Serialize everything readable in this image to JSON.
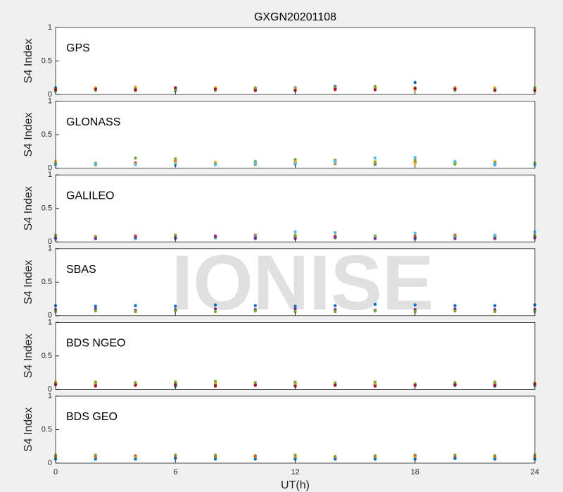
{
  "watermark": "IONISE",
  "chart_data": [
    {
      "type": "scatter",
      "title": "GXGN20201108",
      "label": "GPS",
      "y_label": "S4 Index",
      "xlim": [
        0,
        24
      ],
      "xticks": [
        0,
        6,
        12,
        18,
        24
      ],
      "ylim": [
        0,
        1
      ],
      "yticks": [
        0,
        0.5,
        1
      ],
      "x": [
        0,
        2,
        4,
        6,
        8,
        10,
        12,
        14,
        16,
        18,
        20,
        22,
        24
      ],
      "series": [
        {
          "color": "#0072BD",
          "values": [
            0.1,
            0.07,
            0.08,
            0.06,
            0.09,
            0.08,
            0.1,
            0.12,
            0.11,
            0.18,
            0.09,
            0.07,
            0.09
          ]
        },
        {
          "color": "#D95319",
          "values": [
            0.08,
            0.09,
            0.06,
            0.08,
            0.07,
            0.09,
            0.08,
            0.07,
            0.09,
            0.08,
            0.1,
            0.09,
            0.08
          ]
        },
        {
          "color": "#EDB120",
          "values": [
            0.06,
            0.1,
            0.11,
            0.09,
            0.1,
            0.07,
            0.09,
            0.1,
            0.08,
            0.07,
            0.09,
            0.1,
            0.07
          ]
        },
        {
          "color": "#77AC30",
          "values": [
            0.05,
            0.06,
            0.09,
            0.07,
            0.06,
            0.1,
            0.07,
            0.09,
            0.12,
            0.1,
            0.06,
            0.08,
            0.1
          ]
        },
        {
          "color": "#A2142F",
          "values": [
            0.07,
            0.08,
            0.07,
            0.1,
            0.08,
            0.06,
            0.06,
            0.08,
            0.07,
            0.09,
            0.08,
            0.06,
            0.06
          ]
        }
      ]
    },
    {
      "type": "scatter",
      "label": "GLONASS",
      "y_label": "S4 Index",
      "xlim": [
        0,
        24
      ],
      "xticks": [
        0,
        6,
        12,
        18,
        24
      ],
      "ylim": [
        0,
        1
      ],
      "yticks": [
        0,
        0.5,
        1
      ],
      "x": [
        0,
        2,
        4,
        6,
        8,
        10,
        12,
        14,
        16,
        18,
        20,
        22,
        24
      ],
      "series": [
        {
          "color": "#0072BD",
          "values": [
            0.05,
            0.06,
            0.07,
            0.05,
            0.08,
            0.06,
            0.09,
            0.07,
            0.06,
            0.08,
            0.07,
            0.05,
            0.06
          ]
        },
        {
          "color": "#D95319",
          "values": [
            0.07,
            0.06,
            0.08,
            0.1,
            0.07,
            0.09,
            0.08,
            0.1,
            0.07,
            0.09,
            0.08,
            0.07,
            0.06
          ]
        },
        {
          "color": "#EDB120",
          "values": [
            0.1,
            0.08,
            0.06,
            0.08,
            0.09,
            0.07,
            0.1,
            0.08,
            0.1,
            0.07,
            0.09,
            0.1,
            0.08
          ]
        },
        {
          "color": "#77AC30",
          "values": [
            0.06,
            0.05,
            0.15,
            0.14,
            0.06,
            0.1,
            0.13,
            0.12,
            0.08,
            0.12,
            0.06,
            0.08,
            0.07
          ]
        },
        {
          "color": "#4DBEEE",
          "values": [
            0.05,
            0.07,
            0.05,
            0.06,
            0.05,
            0.08,
            0.06,
            0.1,
            0.15,
            0.16,
            0.1,
            0.06,
            0.05
          ]
        }
      ]
    },
    {
      "type": "scatter",
      "label": "GALILEO",
      "y_label": "S4 Index",
      "xlim": [
        0,
        24
      ],
      "xticks": [
        0,
        6,
        12,
        18,
        24
      ],
      "ylim": [
        0,
        1
      ],
      "yticks": [
        0,
        0.5,
        1
      ],
      "x": [
        0,
        2,
        4,
        6,
        8,
        10,
        12,
        14,
        16,
        18,
        20,
        22,
        24
      ],
      "series": [
        {
          "color": "#0072BD",
          "values": [
            0.05,
            0.06,
            0.05,
            0.07,
            0.06,
            0.05,
            0.07,
            0.08,
            0.06,
            0.05,
            0.07,
            0.06,
            0.08
          ]
        },
        {
          "color": "#D95319",
          "values": [
            0.06,
            0.08,
            0.09,
            0.1,
            0.09,
            0.1,
            0.08,
            0.09,
            0.08,
            0.09,
            0.1,
            0.08,
            0.07
          ]
        },
        {
          "color": "#77AC30",
          "values": [
            0.1,
            0.07,
            0.06,
            0.1,
            0.06,
            0.07,
            0.1,
            0.06,
            0.09,
            0.06,
            0.08,
            0.07,
            0.1
          ]
        },
        {
          "color": "#4DBEEE",
          "values": [
            0.04,
            0.05,
            0.06,
            0.05,
            0.07,
            0.08,
            0.15,
            0.14,
            0.06,
            0.13,
            0.06,
            0.1,
            0.15
          ]
        },
        {
          "color": "#7E2F8E",
          "values": [
            0.06,
            0.05,
            0.07,
            0.06,
            0.08,
            0.06,
            0.05,
            0.07,
            0.05,
            0.06,
            0.05,
            0.05,
            0.06
          ]
        }
      ]
    },
    {
      "type": "scatter",
      "label": "SBAS",
      "y_label": "S4 Index",
      "xlim": [
        0,
        24
      ],
      "xticks": [
        0,
        6,
        12,
        18,
        24
      ],
      "ylim": [
        0,
        1
      ],
      "yticks": [
        0,
        0.5,
        1
      ],
      "x": [
        0,
        2,
        4,
        6,
        8,
        10,
        12,
        14,
        16,
        18,
        20,
        22,
        24
      ],
      "series": [
        {
          "color": "#0072BD",
          "values": [
            0.15,
            0.14,
            0.15,
            0.14,
            0.16,
            0.15,
            0.14,
            0.15,
            0.17,
            0.16,
            0.15,
            0.15,
            0.16
          ]
        },
        {
          "color": "#7E2F8E",
          "values": [
            0.09,
            0.1,
            0.08,
            0.09,
            0.1,
            0.09,
            0.1,
            0.09,
            0.08,
            0.09,
            0.1,
            0.09,
            0.09
          ]
        },
        {
          "color": "#77AC30",
          "values": [
            0.06,
            0.07,
            0.06,
            0.07,
            0.06,
            0.07,
            0.06,
            0.06,
            0.07,
            0.06,
            0.07,
            0.06,
            0.06
          ]
        }
      ]
    },
    {
      "type": "scatter",
      "label": "BDS NGEO",
      "y_label": "S4 Index",
      "xlim": [
        0,
        24
      ],
      "xticks": [
        0,
        6,
        12,
        18,
        24
      ],
      "ylim": [
        0,
        1
      ],
      "yticks": [
        0,
        0.5,
        1
      ],
      "x": [
        0,
        2,
        4,
        6,
        8,
        10,
        12,
        14,
        16,
        18,
        20,
        22,
        24
      ],
      "series": [
        {
          "color": "#0072BD",
          "values": [
            0.08,
            0.06,
            0.07,
            0.05,
            0.06,
            0.07,
            0.06,
            0.08,
            0.1,
            0.07,
            0.06,
            0.05,
            0.06
          ]
        },
        {
          "color": "#D95319",
          "values": [
            0.1,
            0.08,
            0.07,
            0.09,
            0.08,
            0.07,
            0.09,
            0.08,
            0.07,
            0.08,
            0.07,
            0.09,
            0.08
          ]
        },
        {
          "color": "#EDB120",
          "values": [
            0.11,
            0.1,
            0.09,
            0.08,
            0.1,
            0.09,
            0.08,
            0.1,
            0.09,
            0.07,
            0.08,
            0.07,
            0.1
          ]
        },
        {
          "color": "#77AC30",
          "values": [
            0.09,
            0.11,
            0.1,
            0.11,
            0.12,
            0.1,
            0.11,
            0.09,
            0.11,
            0.08,
            0.1,
            0.11,
            0.07
          ]
        },
        {
          "color": "#A2142F",
          "values": [
            0.07,
            0.05,
            0.06,
            0.07,
            0.05,
            0.06,
            0.05,
            0.06,
            0.05,
            0.06,
            0.07,
            0.06,
            0.08
          ]
        }
      ]
    },
    {
      "type": "scatter",
      "label": "BDS GEO",
      "y_label": "S4 Index",
      "x_label": "UT(h)",
      "xlim": [
        0,
        24
      ],
      "xticks": [
        0,
        6,
        12,
        18,
        24
      ],
      "ylim": [
        0,
        1
      ],
      "yticks": [
        0,
        0.5,
        1
      ],
      "x": [
        0,
        2,
        4,
        6,
        8,
        10,
        12,
        14,
        16,
        18,
        20,
        22,
        24
      ],
      "series": [
        {
          "color": "#77AC30",
          "values": [
            0.12,
            0.12,
            0.11,
            0.12,
            0.12,
            0.11,
            0.12,
            0.1,
            0.11,
            0.12,
            0.12,
            0.11,
            0.12
          ]
        },
        {
          "color": "#D95319",
          "values": [
            0.09,
            0.09,
            0.1,
            0.09,
            0.09,
            0.1,
            0.09,
            0.08,
            0.09,
            0.1,
            0.09,
            0.09,
            0.09
          ]
        },
        {
          "color": "#EDB120",
          "values": [
            0.07,
            0.07,
            0.08,
            0.07,
            0.07,
            0.07,
            0.08,
            0.07,
            0.07,
            0.08,
            0.07,
            0.07,
            0.07
          ]
        },
        {
          "color": "#0072BD",
          "values": [
            0.06,
            0.06,
            0.06,
            0.07,
            0.06,
            0.06,
            0.06,
            0.06,
            0.06,
            0.06,
            0.07,
            0.06,
            0.06
          ]
        }
      ]
    }
  ]
}
